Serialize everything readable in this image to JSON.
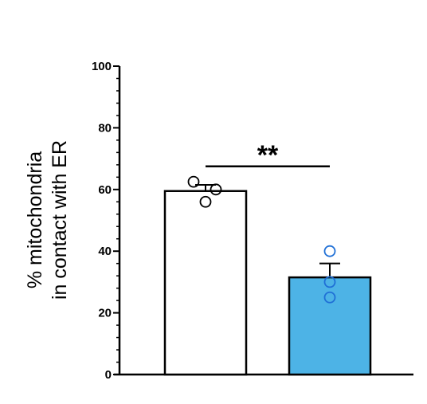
{
  "chart_data": {
    "type": "bar",
    "title": "",
    "xlabel": "",
    "ylabel_lines": [
      "% mitochondria",
      "in contact with ER"
    ],
    "ylim": [
      0,
      100
    ],
    "yticks": [
      0,
      20,
      40,
      60,
      80,
      100
    ],
    "categories": [
      "",
      ""
    ],
    "bars": [
      {
        "value": 59.5,
        "sem": 2.0,
        "fill": "#ffffff",
        "point_color": "#000000",
        "points": [
          62.5,
          56.0,
          60.0
        ]
      },
      {
        "value": 31.5,
        "sem": 4.5,
        "fill": "#4db3e6",
        "point_color": "#1f6fd6",
        "points": [
          40.0,
          30.0,
          25.0
        ]
      }
    ],
    "significance": {
      "label": "**",
      "between": [
        0,
        1
      ],
      "y": 67.5
    },
    "grid": false,
    "legend": "none"
  }
}
